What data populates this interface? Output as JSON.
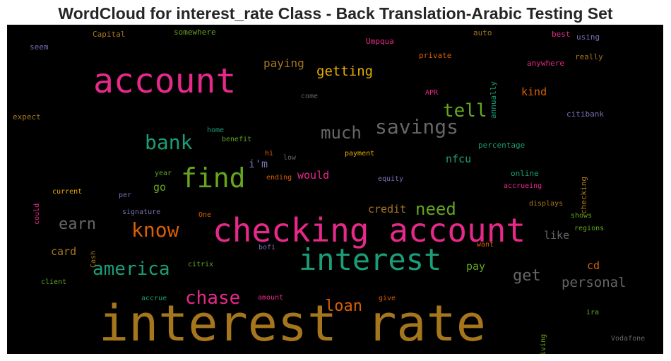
{
  "chart_data": {
    "type": "wordcloud",
    "title": "WordCloud for interest_rate Class - Back Translation-Arabic Testing Set",
    "background": "#000000",
    "palette": [
      "#1b9e77",
      "#d95f02",
      "#7570b3",
      "#e7298a",
      "#66a61e",
      "#e6ab02",
      "#a6761d",
      "#666666"
    ],
    "words": [
      {
        "text": "interest rate",
        "weight": 100,
        "color": "#a6761d",
        "orientation": "horizontal"
      },
      {
        "text": "checking account",
        "weight": 72,
        "color": "#e7298a",
        "orientation": "horizontal"
      },
      {
        "text": "account",
        "weight": 70,
        "color": "#e7298a",
        "orientation": "horizontal"
      },
      {
        "text": "interest",
        "weight": 60,
        "color": "#1b9e77",
        "orientation": "horizontal"
      },
      {
        "text": "find",
        "weight": 55,
        "color": "#66a61e",
        "orientation": "horizontal"
      },
      {
        "text": "savings",
        "weight": 42,
        "color": "#666666",
        "orientation": "horizontal"
      },
      {
        "text": "bank",
        "weight": 40,
        "color": "#1b9e77",
        "orientation": "horizontal"
      },
      {
        "text": "know",
        "weight": 40,
        "color": "#d95f02",
        "orientation": "horizontal"
      },
      {
        "text": "america",
        "weight": 38,
        "color": "#1b9e77",
        "orientation": "horizontal"
      },
      {
        "text": "chase",
        "weight": 38,
        "color": "#e7298a",
        "orientation": "horizontal"
      },
      {
        "text": "tell",
        "weight": 38,
        "color": "#66a61e",
        "orientation": "horizontal"
      },
      {
        "text": "much",
        "weight": 36,
        "color": "#666666",
        "orientation": "horizontal"
      },
      {
        "text": "need",
        "weight": 36,
        "color": "#66a61e",
        "orientation": "horizontal"
      },
      {
        "text": "earn",
        "weight": 34,
        "color": "#666666",
        "orientation": "horizontal"
      },
      {
        "text": "loan",
        "weight": 34,
        "color": "#d95f02",
        "orientation": "horizontal"
      },
      {
        "text": "get",
        "weight": 32,
        "color": "#666666",
        "orientation": "horizontal"
      },
      {
        "text": "getting",
        "weight": 28,
        "color": "#e6ab02",
        "orientation": "horizontal"
      },
      {
        "text": "personal",
        "weight": 28,
        "color": "#666666",
        "orientation": "horizontal"
      },
      {
        "text": "paying",
        "weight": 22,
        "color": "#a6761d",
        "orientation": "horizontal"
      },
      {
        "text": "card",
        "weight": 22,
        "color": "#a6761d",
        "orientation": "horizontal"
      },
      {
        "text": "credit",
        "weight": 21,
        "color": "#a6761d",
        "orientation": "horizontal"
      },
      {
        "text": "i'm",
        "weight": 21,
        "color": "#7570b3",
        "orientation": "horizontal"
      },
      {
        "text": "would",
        "weight": 21,
        "color": "#e7298a",
        "orientation": "horizontal"
      },
      {
        "text": "nfcu",
        "weight": 21,
        "color": "#1b9e77",
        "orientation": "horizontal"
      },
      {
        "text": "go",
        "weight": 21,
        "color": "#66a61e",
        "orientation": "horizontal"
      },
      {
        "text": "pay",
        "weight": 21,
        "color": "#66a61e",
        "orientation": "horizontal"
      },
      {
        "text": "cd",
        "weight": 21,
        "color": "#d95f02",
        "orientation": "horizontal"
      },
      {
        "text": "kind",
        "weight": 20,
        "color": "#d95f02",
        "orientation": "horizontal"
      },
      {
        "text": "like",
        "weight": 20,
        "color": "#666666",
        "orientation": "horizontal"
      },
      {
        "text": "Capital",
        "weight": 12,
        "color": "#a6761d",
        "orientation": "horizontal"
      },
      {
        "text": "somewhere",
        "weight": 11,
        "color": "#66a61e",
        "orientation": "horizontal"
      },
      {
        "text": "auto",
        "weight": 11,
        "color": "#a6761d",
        "orientation": "horizontal"
      },
      {
        "text": "best",
        "weight": 11,
        "color": "#e7298a",
        "orientation": "horizontal"
      },
      {
        "text": "using",
        "weight": 11,
        "color": "#7570b3",
        "orientation": "horizontal"
      },
      {
        "text": "seem",
        "weight": 11,
        "color": "#7570b3",
        "orientation": "horizontal"
      },
      {
        "text": "Umpqua",
        "weight": 11,
        "color": "#e7298a",
        "orientation": "horizontal"
      },
      {
        "text": "private",
        "weight": 11,
        "color": "#d95f02",
        "orientation": "horizontal"
      },
      {
        "text": "annually",
        "weight": 11,
        "color": "#1b9e77",
        "orientation": "vertical"
      },
      {
        "text": "really",
        "weight": 11,
        "color": "#a6761d",
        "orientation": "horizontal"
      },
      {
        "text": "anywhere",
        "weight": 11,
        "color": "#e7298a",
        "orientation": "horizontal"
      },
      {
        "text": "come",
        "weight": 10,
        "color": "#666666",
        "orientation": "horizontal"
      },
      {
        "text": "APR",
        "weight": 10,
        "color": "#e7298a",
        "orientation": "horizontal"
      },
      {
        "text": "expect",
        "weight": 11,
        "color": "#a6761d",
        "orientation": "horizontal"
      },
      {
        "text": "citibank",
        "weight": 11,
        "color": "#7570b3",
        "orientation": "horizontal"
      },
      {
        "text": "home",
        "weight": 10,
        "color": "#1b9e77",
        "orientation": "horizontal"
      },
      {
        "text": "benefit",
        "weight": 10,
        "color": "#66a61e",
        "orientation": "horizontal"
      },
      {
        "text": "percentage",
        "weight": 11,
        "color": "#1b9e77",
        "orientation": "horizontal"
      },
      {
        "text": "checking",
        "weight": 11,
        "color": "#a6761d",
        "orientation": "vertical"
      },
      {
        "text": "hi",
        "weight": 10,
        "color": "#d95f02",
        "orientation": "horizontal"
      },
      {
        "text": "low",
        "weight": 10,
        "color": "#666666",
        "orientation": "horizontal"
      },
      {
        "text": "payment",
        "weight": 10,
        "color": "#e6ab02",
        "orientation": "horizontal"
      },
      {
        "text": "year",
        "weight": 10,
        "color": "#66a61e",
        "orientation": "horizontal"
      },
      {
        "text": "ending",
        "weight": 10,
        "color": "#d95f02",
        "orientation": "horizontal"
      },
      {
        "text": "equity",
        "weight": 10,
        "color": "#7570b3",
        "orientation": "horizontal"
      },
      {
        "text": "online",
        "weight": 11,
        "color": "#1b9e77",
        "orientation": "horizontal"
      },
      {
        "text": "could",
        "weight": 10,
        "color": "#e7298a",
        "orientation": "vertical"
      },
      {
        "text": "current",
        "weight": 10,
        "color": "#e6ab02",
        "orientation": "horizontal"
      },
      {
        "text": "per",
        "weight": 10,
        "color": "#7570b3",
        "orientation": "horizontal"
      },
      {
        "text": "accrueing",
        "weight": 10,
        "color": "#e7298a",
        "orientation": "horizontal"
      },
      {
        "text": "displays",
        "weight": 10,
        "color": "#a6761d",
        "orientation": "horizontal"
      },
      {
        "text": "signature",
        "weight": 10,
        "color": "#7570b3",
        "orientation": "horizontal"
      },
      {
        "text": "One",
        "weight": 10,
        "color": "#d95f02",
        "orientation": "horizontal"
      },
      {
        "text": "shows",
        "weight": 10,
        "color": "#66a61e",
        "orientation": "horizontal"
      },
      {
        "text": "regions",
        "weight": 10,
        "color": "#66a61e",
        "orientation": "horizontal"
      },
      {
        "text": "Cash",
        "weight": 10,
        "color": "#a6761d",
        "orientation": "vertical"
      },
      {
        "text": "bofi",
        "weight": 10,
        "color": "#7570b3",
        "orientation": "horizontal"
      },
      {
        "text": "want",
        "weight": 10,
        "color": "#d95f02",
        "orientation": "horizontal"
      },
      {
        "text": "citrix",
        "weight": 10,
        "color": "#66a61e",
        "orientation": "horizontal"
      },
      {
        "text": "client",
        "weight": 10,
        "color": "#66a61e",
        "orientation": "horizontal"
      },
      {
        "text": "accrue",
        "weight": 10,
        "color": "#1b9e77",
        "orientation": "horizontal"
      },
      {
        "text": "amount",
        "weight": 10,
        "color": "#e7298a",
        "orientation": "horizontal"
      },
      {
        "text": "give",
        "weight": 10,
        "color": "#d95f02",
        "orientation": "horizontal"
      },
      {
        "text": "giving",
        "weight": 10,
        "color": "#66a61e",
        "orientation": "vertical"
      },
      {
        "text": "ira",
        "weight": 10,
        "color": "#66a61e",
        "orientation": "horizontal"
      },
      {
        "text": "Vodafone",
        "weight": 10,
        "color": "#666666",
        "orientation": "horizontal"
      }
    ]
  }
}
